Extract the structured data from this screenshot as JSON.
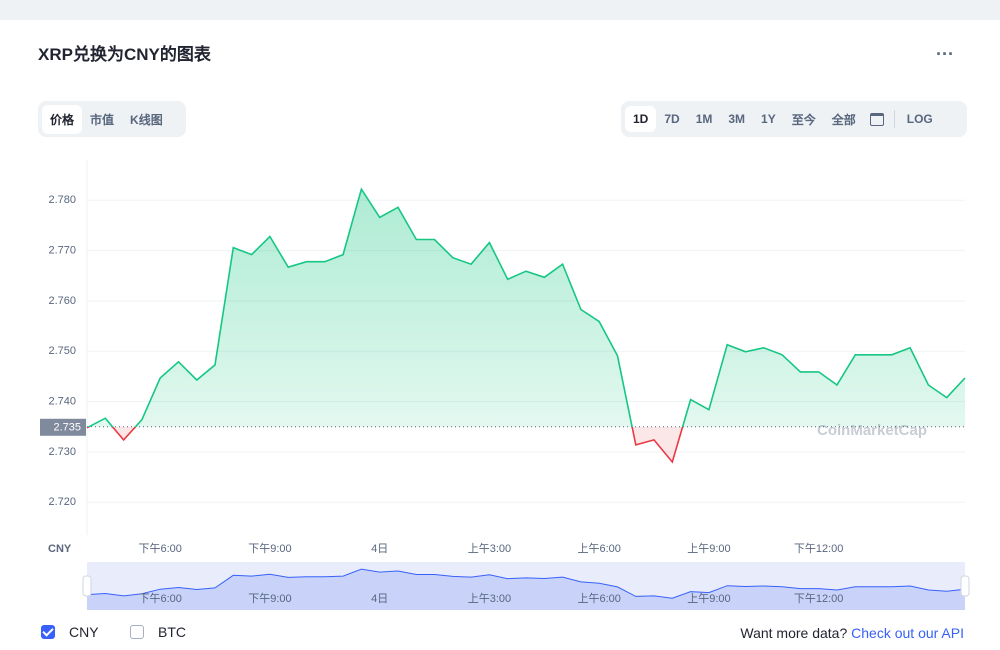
{
  "header": {
    "title": "XRP兑换为CNY的图表"
  },
  "tabs": [
    "价格",
    "市值",
    "K线图"
  ],
  "ranges": [
    "1D",
    "7D",
    "1M",
    "3M",
    "1Y",
    "至今",
    "全部",
    "LOG"
  ],
  "toggles": [
    "CNY",
    "BTC"
  ],
  "footer": {
    "text": "Want more data?",
    "link": "Check out our API"
  },
  "watermark": "CoinMarketCap",
  "chart_data": {
    "type": "line",
    "ylabel": "CNY",
    "categories": [
      null,
      null,
      null,
      null,
      "下午6:00",
      null,
      null,
      null,
      null,
      null,
      "下午9:00",
      null,
      null,
      null,
      null,
      null,
      "4日",
      null,
      null,
      null,
      null,
      null,
      "上午3:00",
      null,
      null,
      null,
      null,
      null,
      "上午6:00",
      null,
      null,
      null,
      null,
      null,
      "上午9:00",
      null,
      null,
      null,
      null,
      null,
      "下午12:00",
      null,
      null,
      null,
      null,
      null,
      null,
      null,
      null
    ],
    "series": [
      {
        "name": "CNY",
        "color": "#16c784",
        "down_color": "#ea3943",
        "values": [
          2.7348,
          2.7367,
          2.7324,
          2.7364,
          2.7447,
          2.7479,
          2.7443,
          2.7473,
          2.7706,
          2.7692,
          2.7728,
          2.7667,
          2.7678,
          2.7678,
          2.7692,
          2.7822,
          2.7766,
          2.7786,
          2.7722,
          2.7722,
          2.7686,
          2.7673,
          2.7716,
          2.7643,
          2.7659,
          2.7647,
          2.7673,
          2.7583,
          2.7559,
          2.7491,
          2.7314,
          2.7324,
          2.728,
          2.7404,
          2.7384,
          2.7513,
          2.7499,
          2.7507,
          2.7493,
          2.7459,
          2.7459,
          2.7433,
          2.7493,
          2.7493,
          2.7493,
          2.7507,
          2.7433,
          2.7408,
          2.7447
        ]
      }
    ],
    "reference_line": 2.735,
    "ylim": [
      2.7135,
      2.788
    ],
    "yticks": [
      {
        "value": 2.72,
        "label": "2.720"
      },
      {
        "value": 2.73,
        "label": "2.730"
      },
      {
        "value": 2.74,
        "label": "2.740"
      },
      {
        "value": 2.75,
        "label": "2.750"
      },
      {
        "value": 2.76,
        "label": "2.760"
      },
      {
        "value": 2.77,
        "label": "2.770"
      },
      {
        "value": 2.78,
        "label": "2.780"
      }
    ],
    "grid": true
  }
}
